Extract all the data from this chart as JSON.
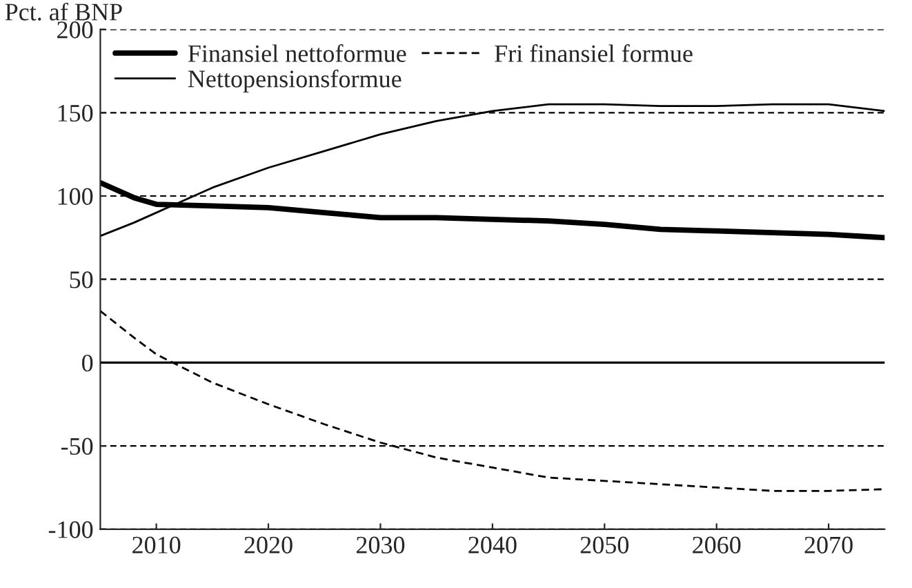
{
  "chart_data": {
    "type": "line",
    "ylabel": "Pct. af BNP",
    "x": [
      2005,
      2008,
      2010,
      2015,
      2020,
      2025,
      2030,
      2035,
      2040,
      2045,
      2050,
      2055,
      2060,
      2065,
      2070,
      2075
    ],
    "series": [
      {
        "name": "Finansiel nettoformue",
        "color": "#000000",
        "line_style": "solid",
        "values": [
          108,
          99,
          95,
          94,
          93,
          90,
          87,
          87,
          86,
          85,
          83,
          80,
          79,
          78,
          77,
          75
        ]
      },
      {
        "name": "Fri finansiel formue",
        "color": "#000000",
        "line_style": "dashed",
        "values": [
          31,
          15,
          5,
          -12,
          -25,
          -37,
          -48,
          -57,
          -63,
          -69,
          -71,
          -73,
          -75,
          -77,
          -77,
          -76
        ]
      },
      {
        "name": "Nettopensionsformue",
        "color": "#000000",
        "line_style": "solid",
        "values": [
          76,
          84,
          90,
          105,
          117,
          127,
          137,
          145,
          151,
          155,
          155,
          154,
          154,
          155,
          155,
          151
        ]
      }
    ],
    "xlim": [
      2005,
      2075
    ],
    "xticks": [
      2010,
      2020,
      2030,
      2040,
      2050,
      2060,
      2070
    ],
    "ylim": [
      -100,
      200
    ],
    "yticks": [
      -100,
      -50,
      0,
      50,
      100,
      150,
      200
    ],
    "grid": "y",
    "ref_lines": [
      {
        "axis": "y",
        "value": 0,
        "color": "#000000",
        "line_style": "solid"
      }
    ],
    "legend": "top left"
  }
}
